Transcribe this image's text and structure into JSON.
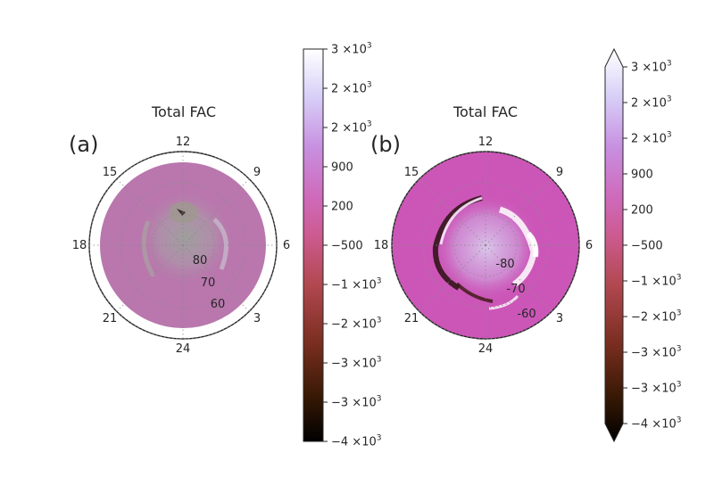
{
  "chart_data": [
    {
      "type": "heatmap",
      "projection": "polar",
      "panel_label": "(a)",
      "title": "Total FAC",
      "mlt_labels": [
        "12",
        "15",
        "18",
        "21",
        "24",
        "3",
        "6",
        "9"
      ],
      "lat_labels": [
        "80",
        "70",
        "60"
      ],
      "colorbar": {
        "extend": "none",
        "tick_labels": [
          "3 ×10^3",
          "2 ×10^3",
          "2 ×10^3",
          "900",
          "200",
          "−500",
          "−1 ×10^3",
          "−2 ×10^3",
          "−3 ×10^3",
          "−3 ×10^3",
          "−4 ×10^3"
        ]
      }
    },
    {
      "type": "heatmap",
      "projection": "polar",
      "panel_label": "(b)",
      "title": "Total FAC",
      "mlt_labels": [
        "12",
        "15",
        "18",
        "21",
        "24",
        "3",
        "6",
        "9"
      ],
      "lat_labels": [
        "-80",
        "-70",
        "-60"
      ],
      "colorbar": {
        "extend": "both",
        "tick_labels": [
          "3 ×10^3",
          "2 ×10^3",
          "2 ×10^3",
          "900",
          "200",
          "−500",
          "−1 ×10^3",
          "−2 ×10^3",
          "−3 ×10^3",
          "−3 ×10^3",
          "−4 ×10^3"
        ]
      }
    }
  ],
  "colors": {
    "colormap": [
      "#000000",
      "#3a1a05",
      "#7a2e20",
      "#b24850",
      "#cc5a8e",
      "#cf69ba",
      "#c890e0",
      "#d8d0f8",
      "#ffffff"
    ],
    "panel_a_fill": "#b977ad",
    "panel_b_fill": "#cc56b8"
  }
}
